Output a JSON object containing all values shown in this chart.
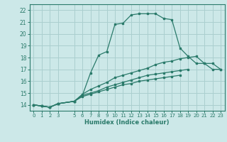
{
  "xlabel": "Humidex (Indice chaleur)",
  "bg_color": "#cce8e8",
  "grid_color": "#aacfcf",
  "line_color": "#2a7a6a",
  "xlim": [
    -0.5,
    23.5
  ],
  "ylim": [
    13.5,
    22.5
  ],
  "yticks": [
    14,
    15,
    16,
    17,
    18,
    19,
    20,
    21,
    22
  ],
  "xticks": [
    0,
    1,
    2,
    3,
    5,
    6,
    7,
    8,
    9,
    10,
    11,
    12,
    13,
    14,
    15,
    16,
    17,
    18,
    19,
    20,
    21,
    22,
    23
  ],
  "series": [
    {
      "x": [
        0,
        1,
        2,
        3,
        5,
        6,
        7,
        8,
        9,
        10,
        11,
        12,
        13,
        14,
        15,
        16,
        17,
        18,
        19,
        20,
        21,
        22,
        23
      ],
      "y": [
        14.0,
        13.9,
        13.8,
        14.1,
        14.3,
        14.8,
        16.7,
        18.2,
        18.5,
        20.8,
        20.9,
        21.6,
        21.7,
        21.7,
        21.7,
        21.3,
        21.2,
        18.8,
        18.1,
        17.5,
        17.5,
        17.0,
        17.0
      ]
    },
    {
      "x": [
        0,
        1,
        2,
        3,
        5,
        6,
        7,
        8,
        9,
        10,
        11,
        12,
        13,
        14,
        15,
        16,
        17,
        18,
        19,
        20,
        21,
        22,
        23
      ],
      "y": [
        14.0,
        13.9,
        13.8,
        14.1,
        14.3,
        14.9,
        15.3,
        15.6,
        15.9,
        16.3,
        16.5,
        16.7,
        16.9,
        17.1,
        17.4,
        17.6,
        17.7,
        17.9,
        18.0,
        18.1,
        17.5,
        17.5,
        17.0
      ]
    },
    {
      "x": [
        0,
        1,
        2,
        3,
        5,
        6,
        7,
        8,
        9,
        10,
        11,
        12,
        13,
        14,
        15,
        16,
        17,
        18,
        19,
        20,
        21,
        22,
        23
      ],
      "y": [
        14.0,
        13.9,
        13.8,
        14.1,
        14.3,
        14.8,
        15.0,
        15.2,
        15.5,
        15.7,
        15.9,
        16.1,
        16.3,
        16.5,
        16.6,
        16.7,
        16.8,
        16.9,
        17.0,
        null,
        null,
        null,
        null
      ]
    },
    {
      "x": [
        0,
        1,
        2,
        3,
        5,
        6,
        7,
        8,
        9,
        10,
        11,
        12,
        13,
        14,
        15,
        16,
        17,
        18
      ],
      "y": [
        14.0,
        13.9,
        13.8,
        14.1,
        14.3,
        14.7,
        14.9,
        15.1,
        15.3,
        15.5,
        15.7,
        15.8,
        16.0,
        16.1,
        16.2,
        16.3,
        16.4,
        16.5
      ]
    }
  ]
}
